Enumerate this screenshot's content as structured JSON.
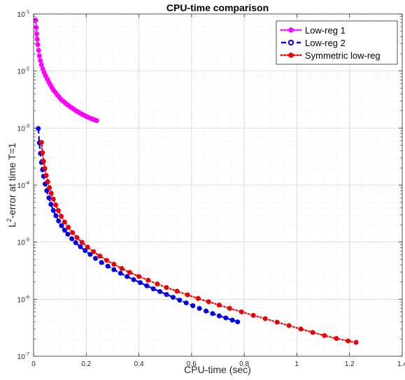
{
  "chart_data": {
    "type": "line",
    "title": "CPU-time comparison",
    "xlabel": "CPU-time (sec)",
    "ylabel": {
      "base": "L",
      "sup": "2",
      "rest": "-error at time T=1"
    },
    "x_ticks": [
      "0",
      "0.2",
      "0.4",
      "0.6",
      "0.8",
      "1",
      "1.2",
      "1.4"
    ],
    "x_tick_values": [
      0,
      0.2,
      0.4,
      0.6,
      0.8,
      1.0,
      1.2,
      1.4
    ],
    "y_ticks": [
      {
        "base": "10",
        "exp": "-7",
        "value": 1e-07
      },
      {
        "base": "10",
        "exp": "-6",
        "value": 1e-06
      },
      {
        "base": "10",
        "exp": "-5",
        "value": 1e-05
      },
      {
        "base": "10",
        "exp": "-4",
        "value": 0.0001
      },
      {
        "base": "10",
        "exp": "-3",
        "value": 0.001
      },
      {
        "base": "10",
        "exp": "-2",
        "value": 0.01
      },
      {
        "base": "10",
        "exp": "-1",
        "value": 0.1
      }
    ],
    "xlim": [
      0,
      1.4
    ],
    "ylim": [
      1e-07,
      0.1
    ],
    "y_scale": "log",
    "grid": true,
    "minor_grid": true,
    "legend_position": "top-right",
    "series": [
      {
        "name": "Low-reg 1",
        "color": "#ff00ff",
        "line_style": "dotted",
        "marker": "circle",
        "x": [
          0.008,
          0.01,
          0.012,
          0.014,
          0.016,
          0.019,
          0.022,
          0.026,
          0.03,
          0.035,
          0.04,
          0.046,
          0.052,
          0.058,
          0.064,
          0.07,
          0.076,
          0.083,
          0.09,
          0.097,
          0.104,
          0.112,
          0.12,
          0.128,
          0.136,
          0.144,
          0.152,
          0.16,
          0.168,
          0.176,
          0.184,
          0.192,
          0.2,
          0.208,
          0.216,
          0.224,
          0.232,
          0.24
        ],
        "y": [
          0.078,
          0.058,
          0.045,
          0.036,
          0.029,
          0.023,
          0.0185,
          0.0152,
          0.0128,
          0.0109,
          0.0094,
          0.0082,
          0.0072,
          0.0064,
          0.0057,
          0.0051,
          0.0046,
          0.0042,
          0.0038,
          0.0035,
          0.0032,
          0.00297,
          0.00276,
          0.00258,
          0.00242,
          0.00228,
          0.00215,
          0.00203,
          0.00193,
          0.00183,
          0.00175,
          0.00167,
          0.0016,
          0.00154,
          0.00148,
          0.00143,
          0.00139,
          0.00135
        ]
      },
      {
        "name": "Low-reg 2",
        "color": "#0000ee",
        "line_style": "dashed",
        "marker": "circle",
        "x": [
          0.018,
          0.022,
          0.026,
          0.03,
          0.034,
          0.038,
          0.044,
          0.05,
          0.058,
          0.066,
          0.075,
          0.085,
          0.095,
          0.106,
          0.118,
          0.13,
          0.145,
          0.16,
          0.178,
          0.196,
          0.215,
          0.235,
          0.258,
          0.282,
          0.305,
          0.33,
          0.355,
          0.38,
          0.405,
          0.43,
          0.455,
          0.48,
          0.505,
          0.53,
          0.555,
          0.58,
          0.605,
          0.63,
          0.655,
          0.68,
          0.705,
          0.73,
          0.755,
          0.775
        ],
        "y": [
          0.00098,
          0.00055,
          0.00036,
          0.00025,
          0.000185,
          0.000143,
          0.000105,
          8e-05,
          6e-05,
          4.6e-05,
          3.6e-05,
          2.9e-05,
          2.35e-05,
          1.95e-05,
          1.62e-05,
          1.38e-05,
          1.15e-05,
          9.8e-06,
          8.3e-06,
          7.1e-06,
          6.1e-06,
          5.2e-06,
          4.4e-06,
          3.8e-06,
          3.3e-06,
          2.85e-06,
          2.5e-06,
          2.2e-06,
          1.95e-06,
          1.72e-06,
          1.52e-06,
          1.36e-06,
          1.21e-06,
          1.08e-06,
          9.6e-07,
          8.6e-07,
          7.7e-07,
          6.9e-07,
          6.2e-07,
          5.6e-07,
          5.1e-07,
          4.7e-07,
          4.3e-07,
          4e-07
        ]
      },
      {
        "name": "Symmetric low-reg",
        "color": "#ee0000",
        "line_style": "dotted",
        "marker": "circle",
        "x": [
          0.03,
          0.034,
          0.038,
          0.043,
          0.048,
          0.054,
          0.06,
          0.067,
          0.075,
          0.084,
          0.094,
          0.105,
          0.118,
          0.132,
          0.148,
          0.165,
          0.184,
          0.205,
          0.228,
          0.252,
          0.278,
          0.305,
          0.335,
          0.365,
          0.4,
          0.435,
          0.47,
          0.505,
          0.545,
          0.585,
          0.625,
          0.665,
          0.705,
          0.745,
          0.79,
          0.835,
          0.88,
          0.925,
          0.97,
          1.015,
          1.06,
          1.105,
          1.15,
          1.195,
          1.225
        ],
        "y": [
          0.00056,
          0.00037,
          0.00026,
          0.000195,
          0.000148,
          0.000115,
          9e-05,
          7.2e-05,
          5.7e-05,
          4.5e-05,
          3.6e-05,
          2.85e-05,
          2.25e-05,
          1.82e-05,
          1.47e-05,
          1.2e-05,
          9.9e-06,
          8.2e-06,
          6.8e-06,
          5.7e-06,
          4.8e-06,
          4.1e-06,
          3.45e-06,
          2.95e-06,
          2.5e-06,
          2.15e-06,
          1.85e-06,
          1.6e-06,
          1.38e-06,
          1.19e-06,
          1.03e-06,
          9e-07,
          7.9e-07,
          6.9e-07,
          6e-07,
          5.2e-07,
          4.55e-07,
          3.95e-07,
          3.45e-07,
          3e-07,
          2.62e-07,
          2.3e-07,
          2.05e-07,
          1.85e-07,
          1.75e-07
        ]
      }
    ]
  }
}
